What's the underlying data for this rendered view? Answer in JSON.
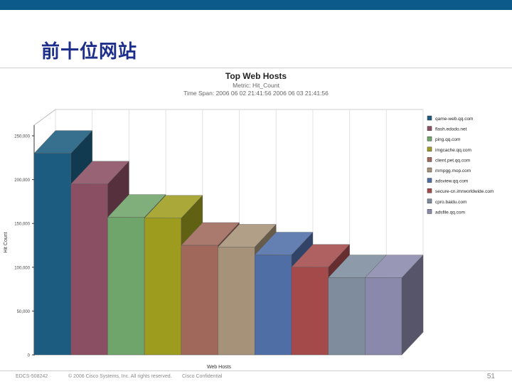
{
  "slide": {
    "title": "前十位网站",
    "footer_code": "EDCS-508242",
    "footer_copyright": "© 2006 Cisco Systems, Inc. All rights reserved.",
    "footer_conf": "Cisco Confidential",
    "page_number": "51"
  },
  "chart_data": {
    "type": "bar",
    "title": "Top Web Hosts",
    "subtitle_metric": "Metric: Hit_Count",
    "subtitle_span": "Time Span: 2006 06 02 21:41:56   2006 06 03 21:41:56",
    "xlabel": "Web Hosts",
    "ylabel": "Hit Count",
    "ylim": [
      0,
      250000
    ],
    "yticks": [
      0,
      50000,
      100000,
      150000,
      200000,
      250000
    ],
    "ytick_labels": [
      "0",
      "50,000",
      "100,000",
      "150,000",
      "200,000",
      "250,000"
    ],
    "grid": true,
    "legend_position": "right",
    "categories": [
      "qame-web.qq.com",
      "flash.edodo.net",
      "ping.qq.com",
      "imgcache.qq.com",
      "client.pet.qq.com",
      "mmpgg.mop.com",
      "adsview.qq.com",
      "secure-cn.imrworldwide.com",
      "cpro.baidu.com",
      "adsfile.qq.com"
    ],
    "values": [
      230000,
      195000,
      157000,
      156000,
      125000,
      123000,
      114000,
      100000,
      88000,
      88000
    ],
    "colors": [
      "#1c5c80",
      "#8a4f62",
      "#6fa46a",
      "#9d9c1e",
      "#a0685b",
      "#a69278",
      "#4f6ea6",
      "#a44a4a",
      "#7e8c9e",
      "#8a89ab"
    ]
  }
}
